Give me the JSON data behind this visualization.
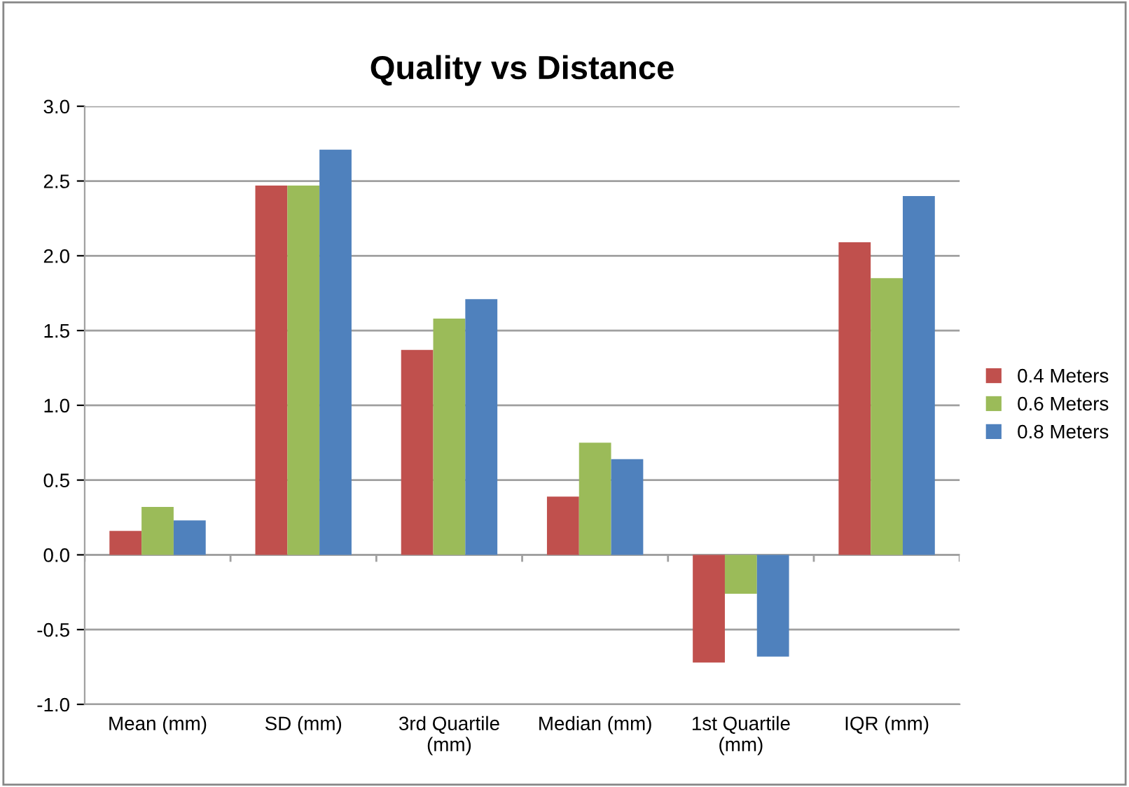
{
  "chart_data": {
    "type": "bar",
    "title": "Quality vs Distance",
    "categories": [
      "Mean (mm)",
      "SD (mm)",
      "3rd Quartile\n(mm)",
      "Median (mm)",
      "1st Quartile\n(mm)",
      "IQR (mm)"
    ],
    "series": [
      {
        "name": "0.4 Meters",
        "color": "#c0504d",
        "values": [
          0.16,
          2.47,
          1.37,
          0.39,
          -0.72,
          2.09
        ]
      },
      {
        "name": "0.6 Meters",
        "color": "#9bbb59",
        "values": [
          0.32,
          2.47,
          1.58,
          0.75,
          -0.26,
          1.85
        ]
      },
      {
        "name": "0.8 Meters",
        "color": "#4f81bd",
        "values": [
          0.23,
          2.71,
          1.71,
          0.64,
          -0.68,
          2.4
        ]
      }
    ],
    "ylim": [
      -1.0,
      3.0
    ],
    "yticks": [
      {
        "value": -1.0,
        "label": "-1.0"
      },
      {
        "value": -0.5,
        "label": "-0.5"
      },
      {
        "value": 0.0,
        "label": "0.0"
      },
      {
        "value": 0.5,
        "label": "0.5"
      },
      {
        "value": 1.0,
        "label": "1.0"
      },
      {
        "value": 1.5,
        "label": "1.5"
      },
      {
        "value": 2.0,
        "label": "2.0"
      },
      {
        "value": 2.5,
        "label": "2.5"
      },
      {
        "value": 3.0,
        "label": "3.0"
      }
    ],
    "grid": "y",
    "legend": "right"
  }
}
